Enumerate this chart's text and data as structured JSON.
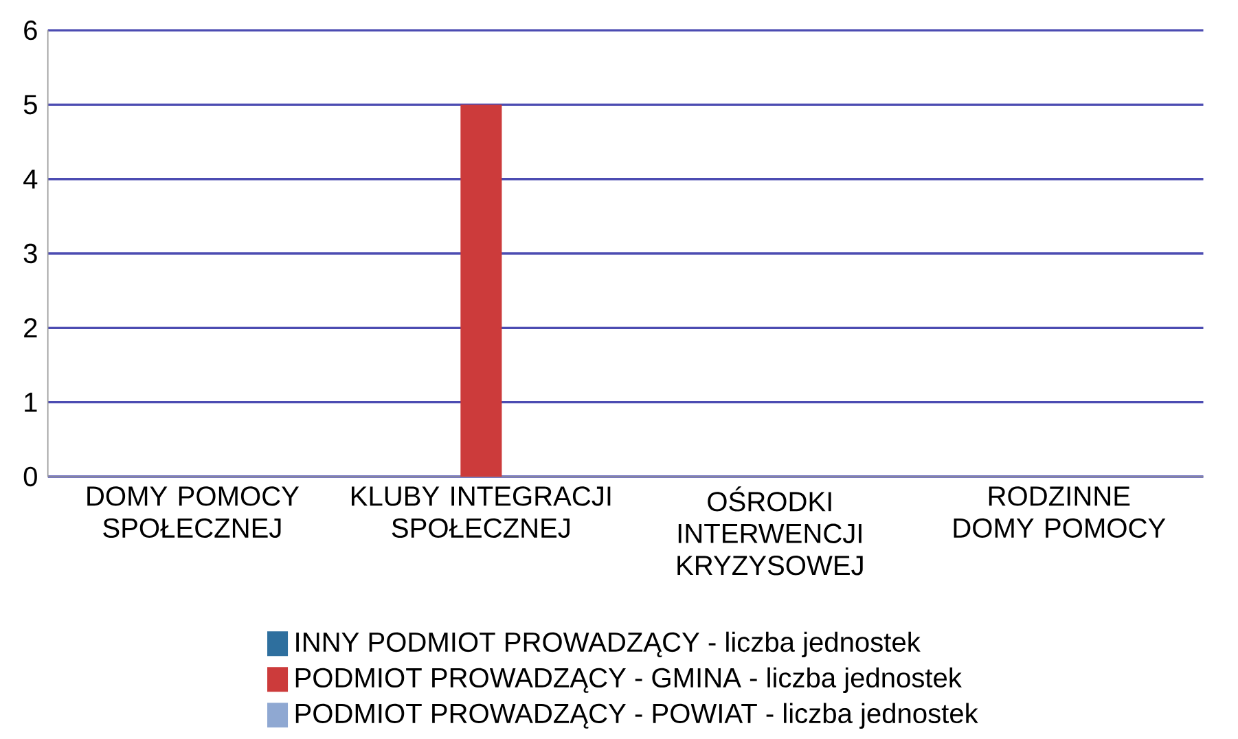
{
  "chart_data": {
    "type": "bar",
    "categories": [
      "DOMY POMOCY SPOŁECZNEJ",
      "KLUBY INTEGRACJI SPOŁECZNEJ",
      "OŚRODKI INTERWENCJI KRYZYSOWEJ",
      "RODZINNE DOMY POMOCY"
    ],
    "series": [
      {
        "name": "INNY PODMIOT PROWADZĄCY - liczba jednostek",
        "color": "#2e6f9e",
        "values": [
          0,
          0,
          0,
          0
        ]
      },
      {
        "name": "PODMIOT PROWADZĄCY - GMINA - liczba jednostek",
        "color": "#cc3b3b",
        "values": [
          0,
          5,
          0,
          0
        ]
      },
      {
        "name": "PODMIOT PROWADZĄCY - POWIAT - liczba jednostek",
        "color": "#8fa8d2",
        "values": [
          0,
          0,
          0,
          0
        ]
      }
    ],
    "ylim": [
      0,
      6
    ],
    "yticks": [
      0,
      1,
      2,
      3,
      4,
      5,
      6
    ],
    "grid": "y",
    "legend": "bottom"
  }
}
